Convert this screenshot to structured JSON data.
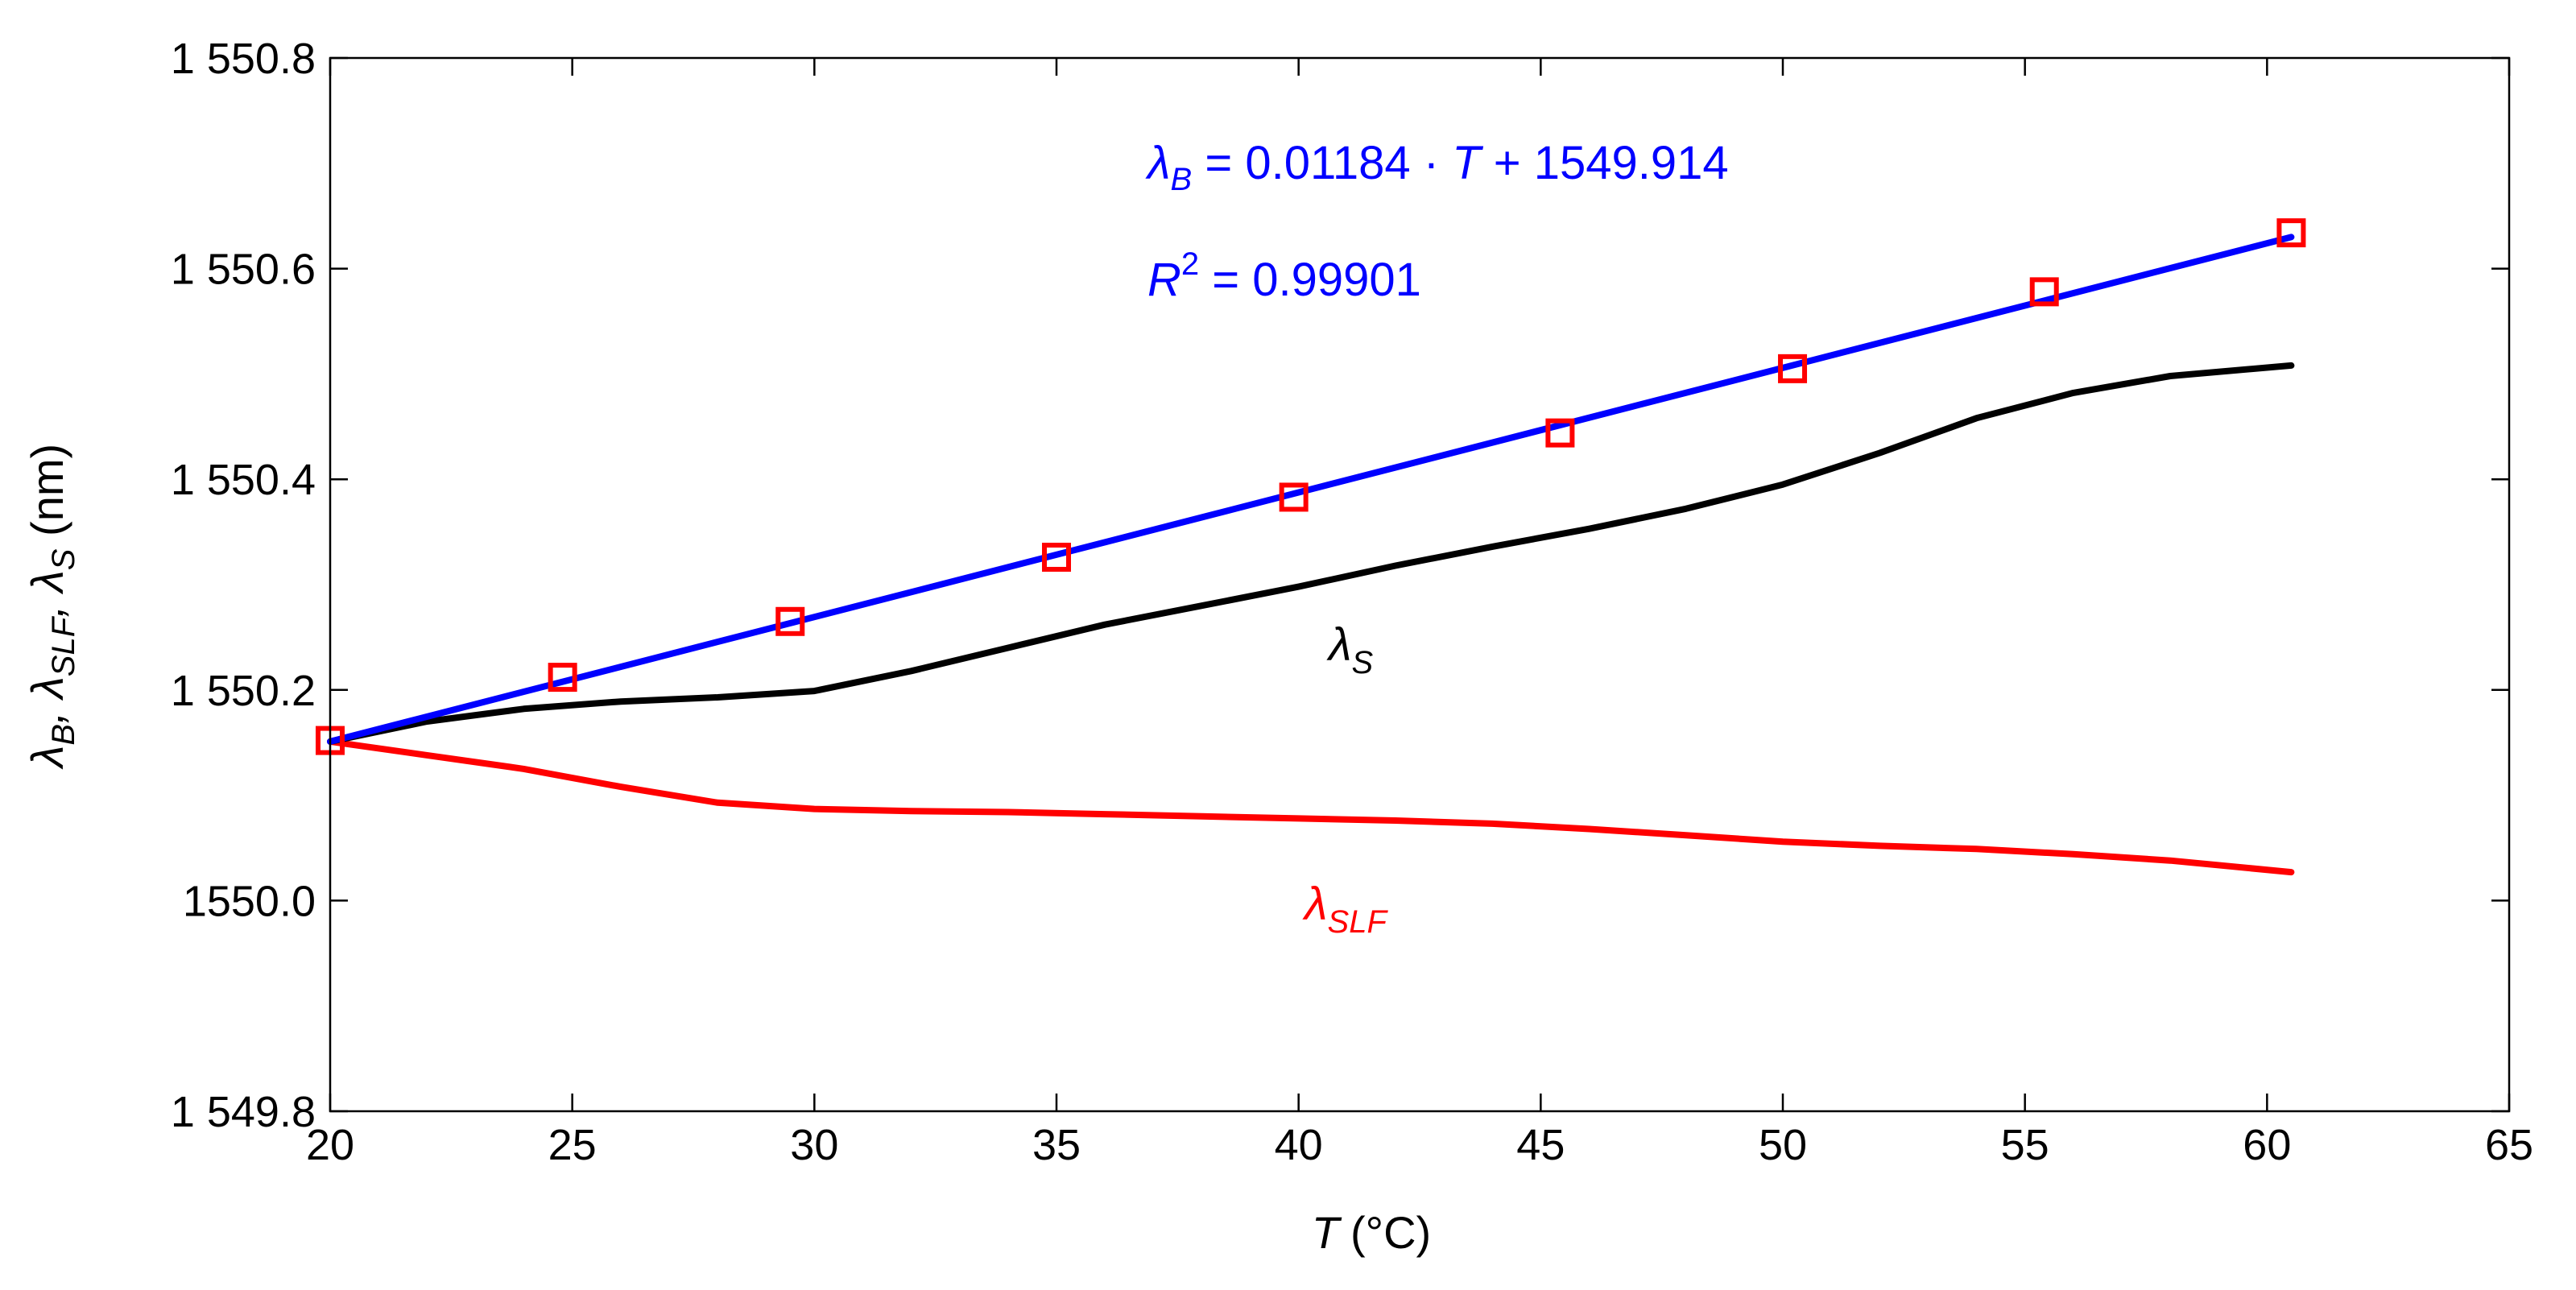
{
  "chart_data": {
    "type": "line",
    "xlabel": {
      "symbol": "T",
      "unit": "(°C)"
    },
    "ylabel": {
      "parts": [
        "λ",
        "B",
        ", λ",
        "SLF",
        ", λ",
        "S",
        " (nm)"
      ]
    },
    "xlim": [
      20,
      65
    ],
    "ylim": [
      1549.8,
      1550.8
    ],
    "grid": false,
    "x_ticks": [
      "20",
      "25",
      "30",
      "35",
      "40",
      "45",
      "50",
      "55",
      "60",
      "65"
    ],
    "y_ticks": [
      "1 549.8",
      "1550.0",
      "1 550.2",
      "1 550.4",
      "1 550.6",
      "1 550.8"
    ],
    "colors": {
      "lambda_B": "#0000ff",
      "lambda_S": "#000000",
      "lambda_SLF": "#ff0000",
      "markers": "#ff0000"
    },
    "series": [
      {
        "key": "lambda_B_fit",
        "style": "line",
        "x": [
          20,
          60.5
        ],
        "y": [
          1550.151,
          1550.63
        ]
      },
      {
        "key": "lambda_B_measured",
        "style": "square-markers",
        "x": [
          20,
          24.8,
          29.5,
          35,
          39.9,
          45.4,
          50.2,
          55.4,
          60.5
        ],
        "y": [
          1550.152,
          1550.212,
          1550.265,
          1550.326,
          1550.383,
          1550.444,
          1550.505,
          1550.578,
          1550.634
        ]
      },
      {
        "key": "lambda_S",
        "style": "line",
        "x": [
          20,
          22,
          24,
          26,
          28,
          30,
          32,
          34,
          36,
          38,
          40,
          42,
          44,
          46,
          48,
          50,
          52,
          54,
          56,
          58,
          60.5
        ],
        "y": [
          1550.151,
          1550.17,
          1550.182,
          1550.189,
          1550.193,
          1550.199,
          1550.218,
          1550.24,
          1550.262,
          1550.28,
          1550.298,
          1550.318,
          1550.336,
          1550.353,
          1550.372,
          1550.395,
          1550.425,
          1550.458,
          1550.482,
          1550.498,
          1550.508
        ]
      },
      {
        "key": "lambda_SLF",
        "style": "line",
        "x": [
          20,
          22,
          24,
          26,
          28,
          30,
          32,
          34,
          36,
          38,
          40,
          42,
          44,
          46,
          48,
          50,
          52,
          54,
          56,
          58,
          60.5
        ],
        "y": [
          1550.151,
          1550.138,
          1550.125,
          1550.108,
          1550.093,
          1550.087,
          1550.085,
          1550.084,
          1550.082,
          1550.08,
          1550.078,
          1550.076,
          1550.073,
          1550.068,
          1550.062,
          1550.056,
          1550.052,
          1550.049,
          1550.044,
          1550.038,
          1550.027
        ]
      }
    ],
    "annotations": {
      "fit_equation": {
        "lambda": "λ",
        "sub": "B",
        "lhs_rest": " = 0.01184 · ",
        "var": "T",
        "rhs": " + 1549.914"
      },
      "r_squared": {
        "symbol": "R",
        "sup": "2",
        "rest": " = 0.99901"
      },
      "label_S": {
        "lambda": "λ",
        "sub": "S"
      },
      "label_SLF": {
        "lambda": "λ",
        "sub": "SLF"
      }
    }
  }
}
